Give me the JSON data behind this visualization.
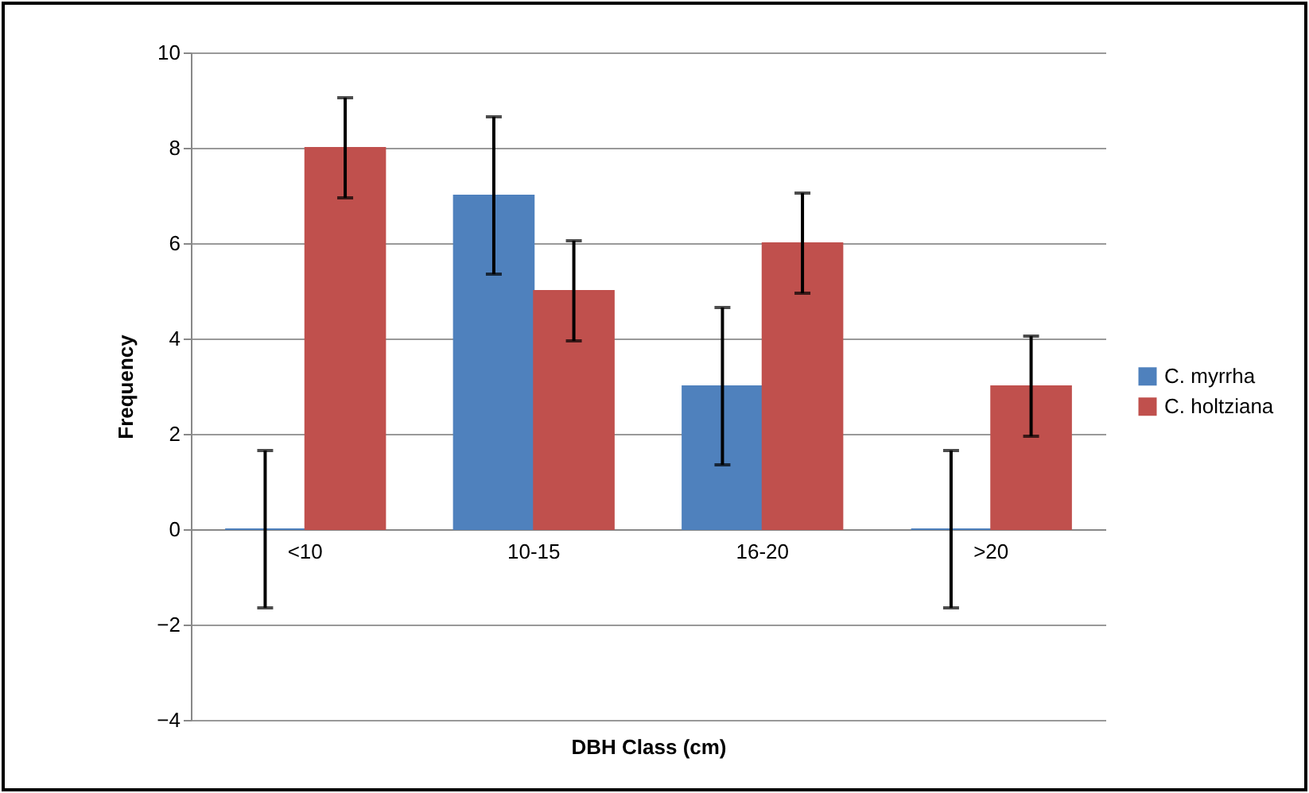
{
  "chart_data": {
    "type": "bar",
    "xlabel": "DBH Class (cm)",
    "ylabel": "Frequency",
    "categories": [
      "<10",
      "10-15",
      "16-20",
      ">20"
    ],
    "series": [
      {
        "name": "C. myrrha",
        "color": "#4f81bd",
        "values": [
          0,
          7,
          3,
          0
        ],
        "errors": [
          1.65,
          1.65,
          1.65,
          1.65
        ]
      },
      {
        "name": "C. holtziana",
        "color": "#c0504d",
        "values": [
          8,
          5,
          6,
          3
        ],
        "errors": [
          1.05,
          1.05,
          1.05,
          1.05
        ]
      }
    ],
    "ylim": [
      -4,
      10
    ],
    "yticks": [
      -4,
      -2,
      0,
      2,
      4,
      6,
      8,
      10
    ],
    "grid": "y",
    "legend": "right"
  }
}
